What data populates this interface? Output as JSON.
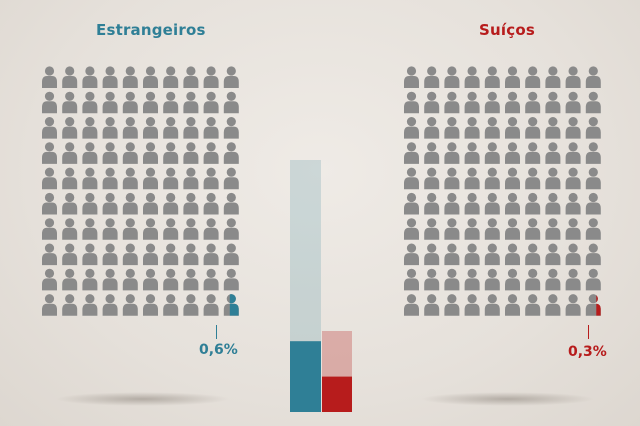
{
  "chart_data": {
    "type": "bar",
    "categories": [
      "Estrangeiros",
      "Suíços"
    ],
    "values": [
      0.6,
      0.3
    ],
    "labels": [
      "0,6%",
      "0,3%"
    ],
    "icons_per_group": 100,
    "icon_columns": 10,
    "icon_rows": 10
  },
  "colors": {
    "foreign": "#2f7f96",
    "swiss": "#b71c1c",
    "person": "#8a8a8a"
  }
}
